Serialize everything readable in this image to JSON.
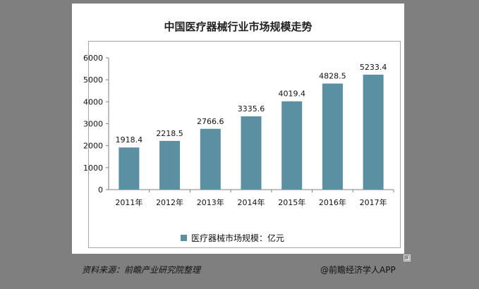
{
  "chart_data": {
    "type": "bar",
    "title": "中国医疗器械行业市场规模走势",
    "categories": [
      "2011年",
      "2012年",
      "2013年",
      "2014年",
      "2015年",
      "2016年",
      "2017年"
    ],
    "series": [
      {
        "name": "医疗器械市场规模：亿元",
        "values": [
          1918.4,
          2218.5,
          2766.6,
          3335.6,
          4019.4,
          4828.5,
          5233.4
        ]
      }
    ],
    "value_labels": [
      "1918.4",
      "2218.5",
      "2766.6",
      "3335.6",
      "4019.4",
      "4828.5",
      "5233.4"
    ],
    "ylim": [
      0,
      6000
    ],
    "yticks": [
      0,
      1000,
      2000,
      3000,
      4000,
      5000,
      6000
    ],
    "grid": false,
    "legend": "bottom",
    "colors": {
      "bar": "#5b8fa2",
      "axis": "#808080",
      "text": "#111111"
    }
  },
  "footer": {
    "source": "资料来源：前瞻产业研究院整理",
    "brand": "@前瞻经济学人APP"
  }
}
